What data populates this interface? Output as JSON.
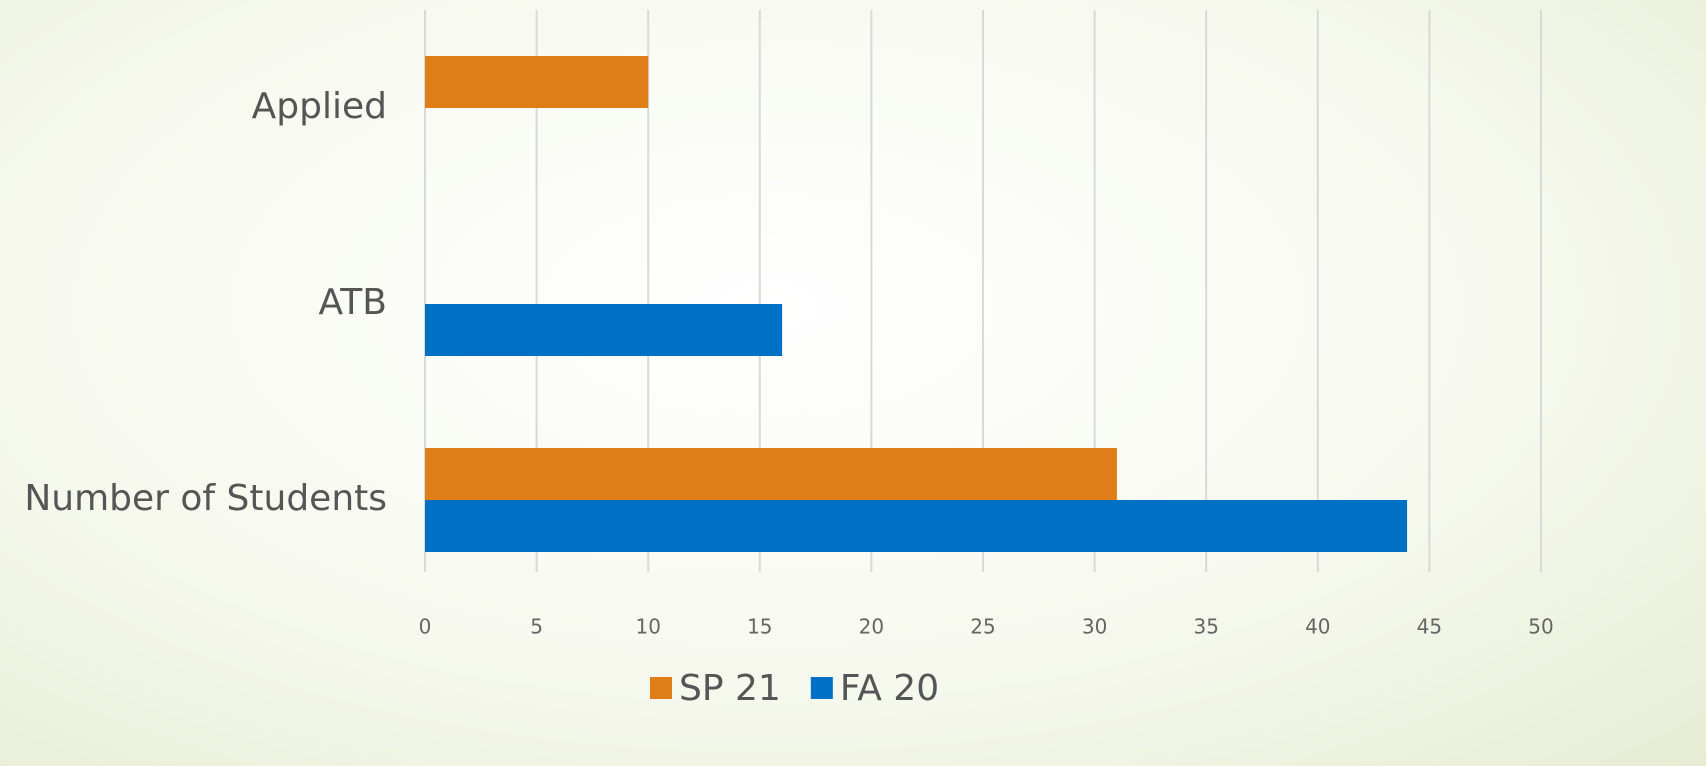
{
  "chart_data": {
    "type": "hbar",
    "categories": [
      "Applied",
      "ATB",
      "Number of Students"
    ],
    "series": [
      {
        "name": "SP 21",
        "color": "#df7e19",
        "values": [
          10,
          null,
          31
        ]
      },
      {
        "name": "FA 20",
        "color": "#0070c4",
        "values": [
          null,
          16,
          44
        ]
      }
    ],
    "xlim": [
      0,
      50
    ],
    "xticks": [
      0,
      5,
      10,
      15,
      20,
      25,
      30,
      35,
      40,
      45,
      50
    ],
    "grid": true,
    "legend": "bottom"
  }
}
